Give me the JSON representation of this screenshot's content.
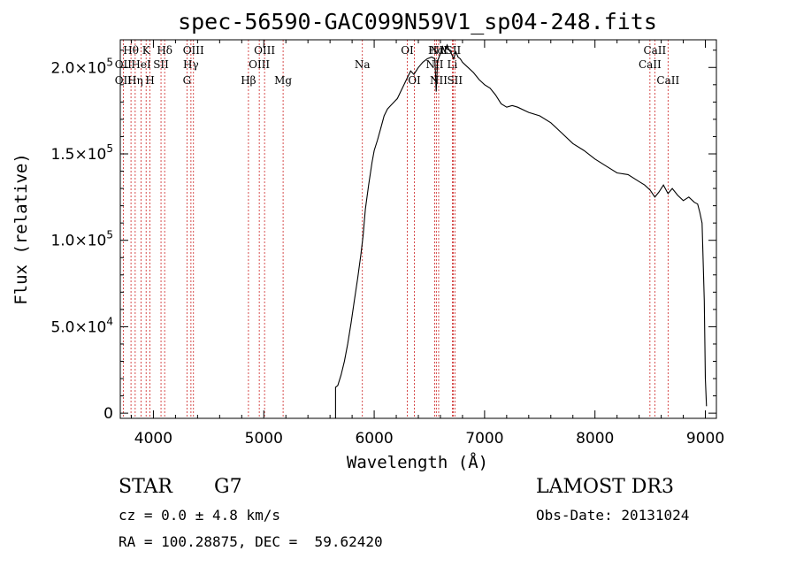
{
  "chart_data": {
    "type": "line",
    "title": "spec-56590-GAC099N59V1_sp04-248.fits",
    "xlabel": "Wavelength (Å)",
    "ylabel": "Flux (relative)",
    "xlim": [
      3700,
      9100
    ],
    "ylim": [
      -3000,
      216000
    ],
    "x_ticks": [
      4000,
      5000,
      6000,
      7000,
      8000,
      9000
    ],
    "x_tick_labels": [
      "4000",
      "5000",
      "6000",
      "7000",
      "8000",
      "9000"
    ],
    "y_ticks": [
      0,
      50000,
      100000,
      150000,
      200000
    ],
    "y_tick_labels": [
      {
        "mantissa": "0",
        "exp": ""
      },
      {
        "mantissa": "5.0×10",
        "exp": "4"
      },
      {
        "mantissa": "1.0×10",
        "exp": "5"
      },
      {
        "mantissa": "1.5×10",
        "exp": "5"
      },
      {
        "mantissa": "2.0×10",
        "exp": "5"
      }
    ],
    "series": [
      {
        "name": "flux",
        "x": [
          5650,
          5670,
          5700,
          5730,
          5760,
          5790,
          5820,
          5850,
          5880,
          5900,
          5920,
          5950,
          5980,
          6000,
          6030,
          6060,
          6090,
          6120,
          6150,
          6180,
          6210,
          6240,
          6270,
          6300,
          6330,
          6360,
          6400,
          6440,
          6480,
          6520,
          6550,
          6562,
          6575,
          6600,
          6620,
          6640,
          6660,
          6680,
          6700,
          6720,
          6740,
          6760,
          6780,
          6800,
          6850,
          6900,
          6950,
          7000,
          7050,
          7100,
          7150,
          7200,
          7250,
          7300,
          7400,
          7500,
          7600,
          7700,
          7800,
          7900,
          8000,
          8100,
          8200,
          8300,
          8400,
          8450,
          8500,
          8542,
          8580,
          8620,
          8662,
          8700,
          8750,
          8800,
          8850,
          8900,
          8930,
          8950,
          8970,
          8990,
          9000,
          9010
        ],
        "y": [
          15000,
          16000,
          22000,
          30000,
          40000,
          52000,
          65000,
          78000,
          92000,
          103000,
          118000,
          132000,
          145000,
          152000,
          158000,
          165000,
          172000,
          176000,
          178000,
          180000,
          182000,
          186000,
          190000,
          194000,
          198000,
          196000,
          200000,
          203000,
          205000,
          206000,
          205000,
          186000,
          204000,
          208000,
          212000,
          209000,
          213000,
          210000,
          208000,
          205000,
          209000,
          206000,
          205000,
          203000,
          200000,
          197000,
          193000,
          190000,
          188000,
          184000,
          179000,
          177000,
          178000,
          177000,
          174000,
          172000,
          168000,
          162000,
          156000,
          152000,
          147000,
          143000,
          139000,
          138000,
          134000,
          132000,
          129000,
          125000,
          128000,
          132000,
          127000,
          130000,
          126000,
          123000,
          125000,
          122000,
          121000,
          116000,
          110000,
          65000,
          20000,
          4000
        ]
      }
    ],
    "line_ids": [
      {
        "label": "Hθ",
        "wl": 3797,
        "row": 1
      },
      {
        "label": "OII",
        "wl": 3727,
        "row": 2
      },
      {
        "label": "OII",
        "wl": 3727,
        "row": 3
      },
      {
        "label": "HeI",
        "wl": 3889,
        "row": 2
      },
      {
        "label": "Hη",
        "wl": 3835,
        "row": 3
      },
      {
        "label": "K",
        "wl": 3934,
        "row": 1
      },
      {
        "label": "SII",
        "wl": 4069,
        "row": 2
      },
      {
        "label": "H",
        "wl": 3969,
        "row": 3
      },
      {
        "label": "Hδ",
        "wl": 4102,
        "row": 1
      },
      {
        "label": "OIII",
        "wl": 4363,
        "row": 1
      },
      {
        "label": "Hγ",
        "wl": 4340,
        "row": 2
      },
      {
        "label": "G",
        "wl": 4304,
        "row": 3
      },
      {
        "label": "OIII",
        "wl": 5007,
        "row": 1
      },
      {
        "label": "OIII",
        "wl": 4959,
        "row": 2
      },
      {
        "label": "Hβ",
        "wl": 4861,
        "row": 3
      },
      {
        "label": "Mg",
        "wl": 5175,
        "row": 3
      },
      {
        "label": "Na",
        "wl": 5893,
        "row": 2
      },
      {
        "label": "OI",
        "wl": 6300,
        "row": 1
      },
      {
        "label": "OI",
        "wl": 6364,
        "row": 3
      },
      {
        "label": "Hα",
        "wl": 6563,
        "row": 1
      },
      {
        "label": "NII",
        "wl": 6584,
        "row": 1
      },
      {
        "label": "SII",
        "wl": 6716,
        "row": 1
      },
      {
        "label": "NII",
        "wl": 6548,
        "row": 2
      },
      {
        "label": "Li",
        "wl": 6708,
        "row": 2
      },
      {
        "label": "NII",
        "wl": 6584,
        "row": 3
      },
      {
        "label": "SII",
        "wl": 6731,
        "row": 3
      },
      {
        "label": "CaII",
        "wl": 8542,
        "row": 1
      },
      {
        "label": "CaII",
        "wl": 8498,
        "row": 2
      },
      {
        "label": "CaII",
        "wl": 8662,
        "row": 3
      }
    ],
    "line_colors": {
      "spectrum": "#000000",
      "markers": "#cc2222"
    }
  },
  "info": {
    "class_label": "STAR",
    "subclass": "G7",
    "survey": "LAMOST DR3",
    "cz": "cz = 0.0 ± 4.8 km/s",
    "obs_date": "Obs-Date: 20131024",
    "radec": "RA = 100.28875, DEC =  59.62420"
  }
}
